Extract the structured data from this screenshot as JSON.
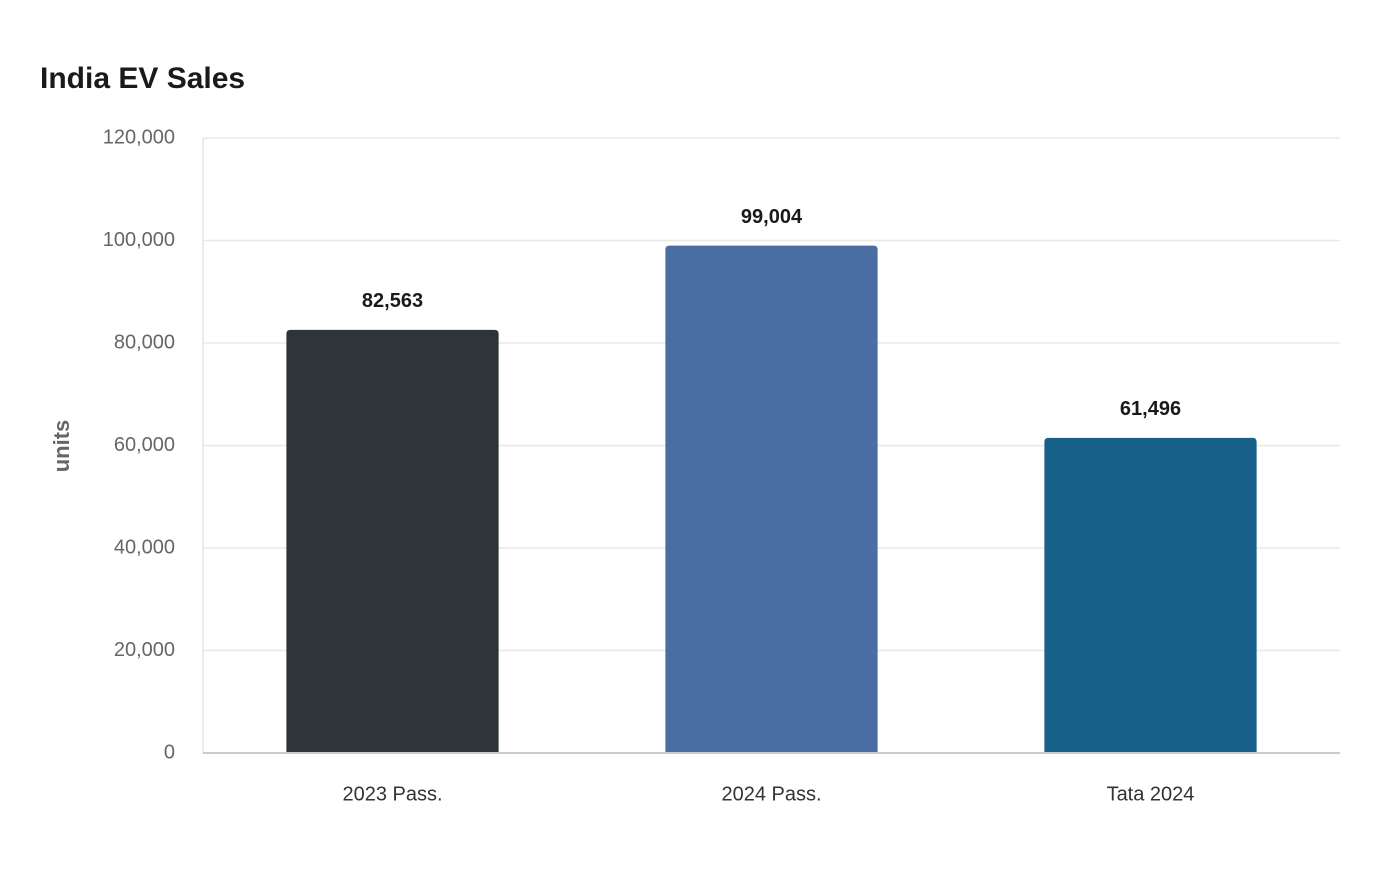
{
  "chart_data": {
    "type": "bar",
    "title": "India EV Sales",
    "y_label": "units",
    "categories": [
      "2023 Pass.",
      "2024 Pass.",
      "Tata 2024"
    ],
    "values": [
      82563,
      99004,
      61496
    ],
    "value_labels": [
      "82,563",
      "99,004",
      "61,496"
    ],
    "colors": [
      "#2e3538",
      "#4a6ea3",
      "#17618a"
    ],
    "ylim": [
      0,
      120000
    ],
    "yticks": [
      0,
      {
        "value": 20000,
        "label": "20,000"
      },
      {
        "value": 40000,
        "label": "40,000"
      },
      {
        "value": 60000,
        "label": "60,000"
      },
      {
        "value": 80000,
        "label": "80,000"
      },
      {
        "value": 100000,
        "label": "100,000"
      },
      {
        "value": 120000,
        "label": "120,000"
      }
    ],
    "grid": true
  }
}
